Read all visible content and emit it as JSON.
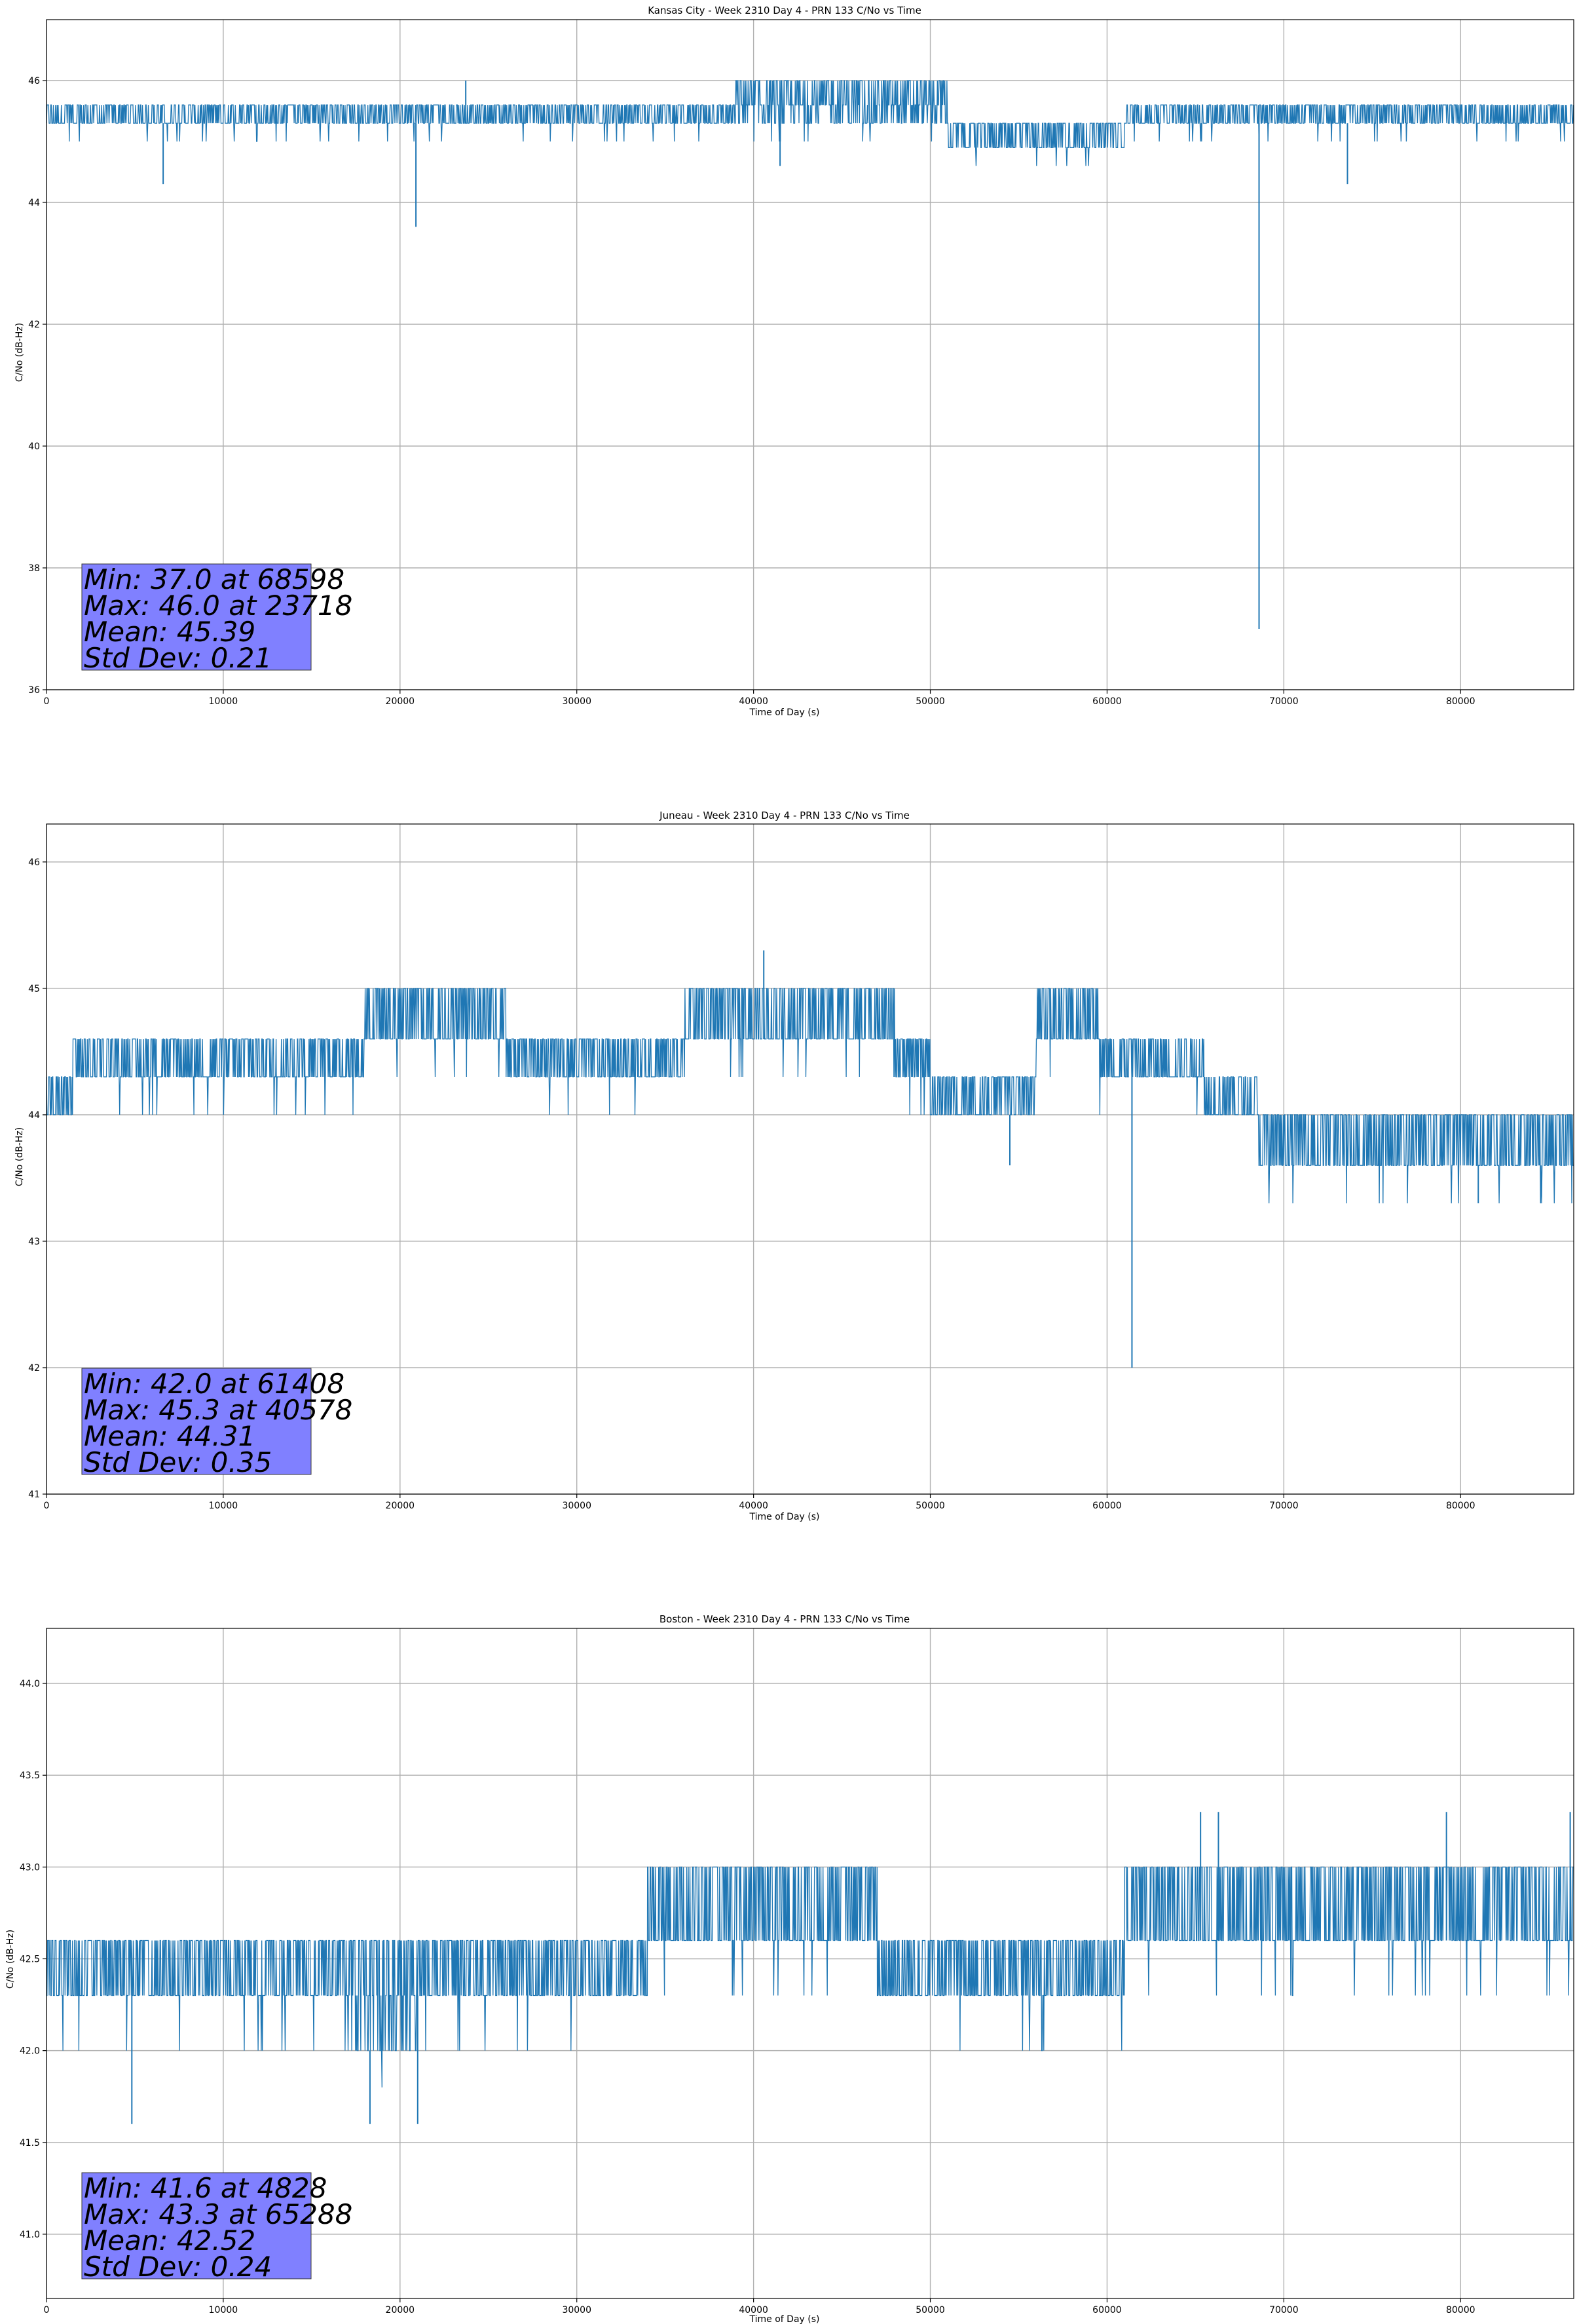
{
  "chart_data": [
    {
      "type": "line",
      "title": "Kansas City - Week 2310 Day 4 - PRN 133 C/No vs Time",
      "xlabel": "Time of Day (s)",
      "ylabel": "C/No (dB-Hz)",
      "xlim": [
        0,
        86400
      ],
      "ylim": [
        36,
        47
      ],
      "xticks": [
        0,
        10000,
        20000,
        30000,
        40000,
        50000,
        60000,
        70000,
        80000
      ],
      "xtick_labels": [
        "0",
        "10000",
        "20000",
        "30000",
        "40000",
        "50000",
        "60000",
        "70000",
        "80000"
      ],
      "yticks": [
        36,
        38,
        40,
        42,
        44,
        46
      ],
      "ytick_labels": [
        "36",
        "38",
        "40",
        "42",
        "44",
        "46"
      ],
      "grid": true,
      "color": "#1f77b4",
      "segments": [
        {
          "x0": 0,
          "x1": 18000,
          "levels": [
            45.3,
            45.6
          ],
          "lo": 45.0
        },
        {
          "x0": 18000,
          "x1": 30000,
          "levels": [
            45.3,
            45.6
          ],
          "lo": 45.0
        },
        {
          "x0": 30000,
          "x1": 39000,
          "levels": [
            45.3,
            45.6
          ],
          "lo": 45.0
        },
        {
          "x0": 39000,
          "x1": 51000,
          "levels": [
            45.3,
            45.6,
            46.0
          ],
          "lo": 45.0
        },
        {
          "x0": 51000,
          "x1": 61000,
          "levels": [
            44.9,
            45.3
          ],
          "lo": 44.6
        },
        {
          "x0": 61000,
          "x1": 86400,
          "levels": [
            45.3,
            45.6
          ],
          "lo": 45.0
        }
      ],
      "spikes": [
        {
          "x": 6600,
          "y": 44.3
        },
        {
          "x": 20900,
          "y": 43.6
        },
        {
          "x": 41500,
          "y": 44.6
        },
        {
          "x": 68598,
          "y": 37.0
        },
        {
          "x": 73600,
          "y": 44.3
        },
        {
          "x": 23718,
          "y": 46.0
        }
      ],
      "annotation": {
        "lines": [
          "Min: 37.0 at 68598",
          "Max: 46.0 at 23718",
          "Mean: 45.39",
          "Std Dev: 0.21"
        ],
        "box_color": "#8080ff"
      }
    },
    {
      "type": "line",
      "title": "Juneau - Week 2310 Day 4 - PRN 133 C/No vs Time",
      "xlabel": "Time of Day (s)",
      "ylabel": "C/No (dB-Hz)",
      "xlim": [
        0,
        86400
      ],
      "ylim": [
        41,
        46.3
      ],
      "xticks": [
        0,
        10000,
        20000,
        30000,
        40000,
        50000,
        60000,
        70000,
        80000
      ],
      "xtick_labels": [
        "0",
        "10000",
        "20000",
        "30000",
        "40000",
        "50000",
        "60000",
        "70000",
        "80000"
      ],
      "yticks": [
        41,
        42,
        43,
        44,
        45,
        46
      ],
      "ytick_labels": [
        "41",
        "42",
        "43",
        "44",
        "45",
        "46"
      ],
      "grid": true,
      "color": "#1f77b4",
      "segments": [
        {
          "x0": 0,
          "x1": 1500,
          "levels": [
            44.0,
            44.3
          ],
          "lo": 44.0
        },
        {
          "x0": 1500,
          "x1": 18000,
          "levels": [
            44.3,
            44.6
          ],
          "lo": 44.0
        },
        {
          "x0": 18000,
          "x1": 26000,
          "levels": [
            44.6,
            45.0
          ],
          "lo": 44.3
        },
        {
          "x0": 26000,
          "x1": 36000,
          "levels": [
            44.3,
            44.6
          ],
          "lo": 44.0
        },
        {
          "x0": 36000,
          "x1": 48000,
          "levels": [
            44.6,
            45.0
          ],
          "lo": 44.3
        },
        {
          "x0": 48000,
          "x1": 50000,
          "levels": [
            44.3,
            44.6
          ],
          "lo": 44.0
        },
        {
          "x0": 50000,
          "x1": 56000,
          "levels": [
            44.0,
            44.3
          ],
          "lo": 44.0
        },
        {
          "x0": 56000,
          "x1": 59500,
          "levels": [
            44.6,
            45.0
          ],
          "lo": 44.3
        },
        {
          "x0": 59500,
          "x1": 65500,
          "levels": [
            44.3,
            44.6
          ],
          "lo": 44.0
        },
        {
          "x0": 65500,
          "x1": 68500,
          "levels": [
            44.0,
            44.3
          ],
          "lo": 44.0
        },
        {
          "x0": 68500,
          "x1": 86400,
          "levels": [
            43.6,
            44.0
          ],
          "lo": 43.3
        }
      ],
      "spikes": [
        {
          "x": 40578,
          "y": 45.3
        },
        {
          "x": 61408,
          "y": 42.0
        },
        {
          "x": 54500,
          "y": 43.6
        },
        {
          "x": 81000,
          "y": 43.3
        }
      ],
      "annotation": {
        "lines": [
          "Min: 42.0 at 61408",
          "Max: 45.3 at 40578",
          "Mean: 44.31",
          "Std Dev: 0.35"
        ],
        "box_color": "#8080ff"
      }
    },
    {
      "type": "line",
      "title": "Boston - Week 2310 Day 4 - PRN 133 C/No vs Time",
      "xlabel": "Time of Day (s)",
      "ylabel": "C/No (dB-Hz)",
      "xlim": [
        0,
        86400
      ],
      "ylim": [
        40.65,
        44.3
      ],
      "xticks": [
        0,
        10000,
        20000,
        30000,
        40000,
        50000,
        60000,
        70000,
        80000
      ],
      "xtick_labels": [
        "0",
        "10000",
        "20000",
        "30000",
        "40000",
        "50000",
        "60000",
        "70000",
        "80000"
      ],
      "yticks": [
        41.0,
        41.5,
        42.0,
        42.5,
        43.0,
        43.5,
        44.0
      ],
      "ytick_labels": [
        "41.0",
        "41.5",
        "42.0",
        "42.5",
        "43.0",
        "43.5",
        "44.0"
      ],
      "grid": true,
      "color": "#1f77b4",
      "segments": [
        {
          "x0": 0,
          "x1": 17000,
          "levels": [
            42.3,
            42.6
          ],
          "lo": 42.0
        },
        {
          "x0": 17000,
          "x1": 21000,
          "levels": [
            42.0,
            42.3,
            42.6
          ],
          "lo": 41.8
        },
        {
          "x0": 21000,
          "x1": 34000,
          "levels": [
            42.3,
            42.6
          ],
          "lo": 42.0
        },
        {
          "x0": 34000,
          "x1": 47000,
          "levels": [
            42.6,
            43.0
          ],
          "lo": 42.3
        },
        {
          "x0": 47000,
          "x1": 61000,
          "levels": [
            42.3,
            42.6
          ],
          "lo": 42.0
        },
        {
          "x0": 61000,
          "x1": 86400,
          "levels": [
            42.6,
            43.0
          ],
          "lo": 42.3
        }
      ],
      "spikes": [
        {
          "x": 4828,
          "y": 41.6
        },
        {
          "x": 18300,
          "y": 41.6
        },
        {
          "x": 21000,
          "y": 41.6
        },
        {
          "x": 65288,
          "y": 43.3
        },
        {
          "x": 66300,
          "y": 43.3
        },
        {
          "x": 79200,
          "y": 43.3
        },
        {
          "x": 86200,
          "y": 43.3
        }
      ],
      "annotation": {
        "lines": [
          "Min: 41.6 at 4828",
          "Max: 43.3 at 65288",
          "Mean: 42.52",
          "Std Dev: 0.24"
        ],
        "box_color": "#8080ff"
      }
    }
  ]
}
